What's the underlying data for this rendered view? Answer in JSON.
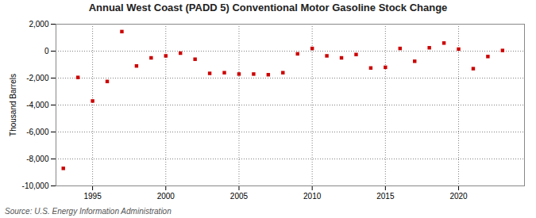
{
  "chart_data": {
    "type": "scatter",
    "title": "Annual West Coast (PADD 5) Conventional Motor Gasoline Stock Change",
    "ylabel": "Thousand Barrels",
    "annotations": [
      "Source: U.S. Energy Information Administration"
    ],
    "x": [
      1993,
      1994,
      1995,
      1996,
      1997,
      1998,
      1999,
      2000,
      2001,
      2002,
      2003,
      2004,
      2005,
      2006,
      2007,
      2008,
      2009,
      2010,
      2011,
      2012,
      2013,
      2014,
      2015,
      2016,
      2017,
      2018,
      2019,
      2020,
      2021,
      2022,
      2023
    ],
    "values": [
      -8700,
      -1950,
      -3700,
      -2250,
      1450,
      -1100,
      -500,
      -350,
      -150,
      -600,
      -1650,
      -1600,
      -1700,
      -1700,
      -1750,
      -1600,
      -200,
      200,
      -350,
      -500,
      -250,
      -1250,
      -1200,
      200,
      -750,
      250,
      600,
      150,
      -1300,
      -400,
      50
    ],
    "color": "#cc0000",
    "marker": "square",
    "xlim": [
      1992.5,
      2024.5
    ],
    "xticks": [
      1995,
      2000,
      2005,
      2010,
      2015,
      2020
    ],
    "ylim": [
      -10000,
      2000
    ],
    "yticks": [
      {
        "value": -10000,
        "label": "-10,000"
      },
      {
        "value": -8000,
        "label": "-8,000"
      },
      {
        "value": -6000,
        "label": "-6,000"
      },
      {
        "value": -4000,
        "label": "-4,000"
      },
      {
        "value": -2000,
        "label": "-2,000"
      },
      0,
      {
        "value": 2000,
        "label": "2,000"
      }
    ],
    "grid": true
  }
}
